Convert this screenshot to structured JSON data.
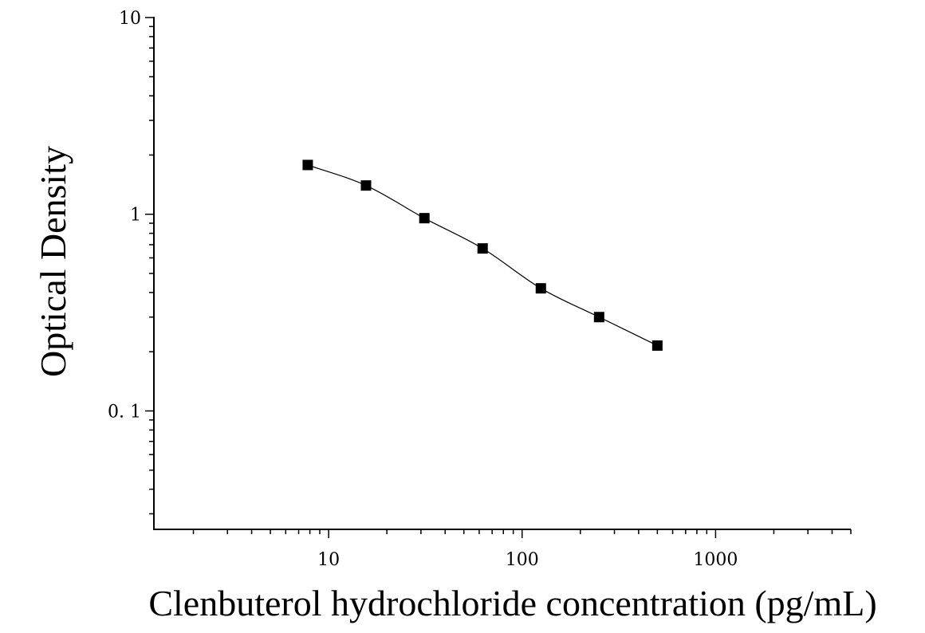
{
  "chart_data": {
    "type": "scatter",
    "title": "",
    "xlabel": "Clenbuterol hydrochloride concentration (pg/mL)",
    "ylabel": "Optical Density",
    "x_scale": "log",
    "y_scale": "log",
    "xlim": [
      1.25,
      5000
    ],
    "ylim": [
      0.025,
      10
    ],
    "x_ticks": [
      {
        "value": 10,
        "label": "10"
      },
      {
        "value": 100,
        "label": "100"
      },
      {
        "value": 1000,
        "label": "1000"
      }
    ],
    "y_ticks": [
      {
        "value": 0.1,
        "label": "0. 1"
      },
      {
        "value": 1,
        "label": "1"
      },
      {
        "value": 10,
        "label": "10"
      }
    ],
    "grid": false,
    "legend": "none",
    "series": [
      {
        "x": [
          7.8,
          15.6,
          31.25,
          62.5,
          125,
          250,
          500
        ],
        "y": [
          1.78,
          1.4,
          0.955,
          0.67,
          0.42,
          0.3,
          0.215
        ],
        "marker": "square",
        "color": "#000000",
        "fit_curve": true
      }
    ]
  }
}
